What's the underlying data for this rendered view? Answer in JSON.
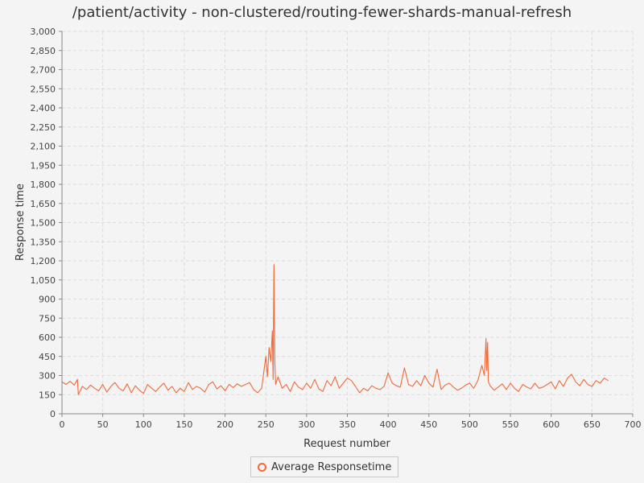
{
  "chart_data": {
    "type": "line",
    "title": "/patient/activity - non-clustered/routing-fewer-shards-manual-refresh",
    "xlabel": "Request number",
    "ylabel": "Response time",
    "xlim": [
      0,
      700
    ],
    "ylim": [
      0,
      3000
    ],
    "x_ticks": [
      0,
      50,
      100,
      150,
      200,
      250,
      300,
      350,
      400,
      450,
      500,
      550,
      600,
      650,
      700
    ],
    "y_ticks": [
      0,
      150,
      300,
      450,
      600,
      750,
      900,
      1050,
      1200,
      1350,
      1500,
      1650,
      1800,
      1950,
      2100,
      2250,
      2400,
      2550,
      2700,
      2850,
      3000
    ],
    "x_tick_labels": [
      "0",
      "50",
      "100",
      "150",
      "200",
      "250",
      "300",
      "350",
      "400",
      "450",
      "500",
      "550",
      "600",
      "650",
      "700"
    ],
    "y_tick_labels": [
      "0",
      "150",
      "300",
      "450",
      "600",
      "750",
      "900",
      "1,050",
      "1,200",
      "1,350",
      "1,500",
      "1,650",
      "1,800",
      "1,950",
      "2,100",
      "2,250",
      "2,400",
      "2,550",
      "2,700",
      "2,850",
      "3,000"
    ],
    "grid": true,
    "legend_position": "bottom-center",
    "series": [
      {
        "name": "Average Responsetime",
        "color": "#f06a3a",
        "x": [
          0,
          5,
          10,
          15,
          19,
          20,
          25,
          30,
          35,
          40,
          45,
          50,
          55,
          60,
          65,
          70,
          75,
          80,
          85,
          90,
          95,
          100,
          105,
          110,
          115,
          120,
          125,
          130,
          135,
          140,
          145,
          150,
          155,
          160,
          165,
          170,
          175,
          180,
          185,
          190,
          195,
          200,
          205,
          210,
          215,
          220,
          225,
          230,
          235,
          240,
          245,
          250,
          252,
          254,
          256,
          258,
          259,
          260,
          261,
          262,
          265,
          270,
          275,
          280,
          285,
          290,
          295,
          300,
          305,
          310,
          315,
          320,
          325,
          330,
          335,
          340,
          345,
          350,
          355,
          360,
          365,
          370,
          375,
          380,
          385,
          390,
          395,
          400,
          405,
          410,
          415,
          420,
          425,
          430,
          435,
          440,
          445,
          450,
          455,
          460,
          465,
          470,
          475,
          480,
          485,
          490,
          495,
          500,
          505,
          510,
          515,
          518,
          520,
          521,
          522,
          523,
          525,
          530,
          535,
          540,
          545,
          550,
          555,
          560,
          565,
          570,
          575,
          580,
          585,
          590,
          595,
          600,
          605,
          610,
          615,
          620,
          625,
          630,
          635,
          640,
          645,
          650,
          655,
          660,
          665,
          670
        ],
        "y": [
          250,
          230,
          255,
          225,
          270,
          150,
          215,
          190,
          225,
          200,
          180,
          230,
          170,
          215,
          245,
          200,
          180,
          235,
          165,
          220,
          185,
          160,
          230,
          200,
          175,
          210,
          240,
          185,
          215,
          165,
          200,
          175,
          245,
          190,
          215,
          200,
          170,
          230,
          250,
          195,
          220,
          180,
          230,
          205,
          235,
          215,
          230,
          245,
          190,
          165,
          200,
          450,
          290,
          520,
          410,
          650,
          270,
          1170,
          400,
          230,
          290,
          200,
          230,
          175,
          250,
          210,
          190,
          240,
          200,
          270,
          195,
          175,
          260,
          220,
          290,
          200,
          240,
          280,
          260,
          215,
          165,
          200,
          180,
          220,
          200,
          190,
          215,
          320,
          240,
          220,
          210,
          360,
          230,
          215,
          260,
          220,
          300,
          240,
          210,
          350,
          190,
          225,
          240,
          210,
          185,
          200,
          225,
          240,
          200,
          260,
          380,
          300,
          590,
          340,
          560,
          250,
          220,
          185,
          210,
          235,
          190,
          240,
          200,
          175,
          230,
          210,
          195,
          240,
          200,
          210,
          230,
          250,
          195,
          260,
          215,
          280,
          310,
          250,
          220,
          270,
          230,
          215,
          260,
          240,
          280,
          260
        ]
      }
    ]
  }
}
